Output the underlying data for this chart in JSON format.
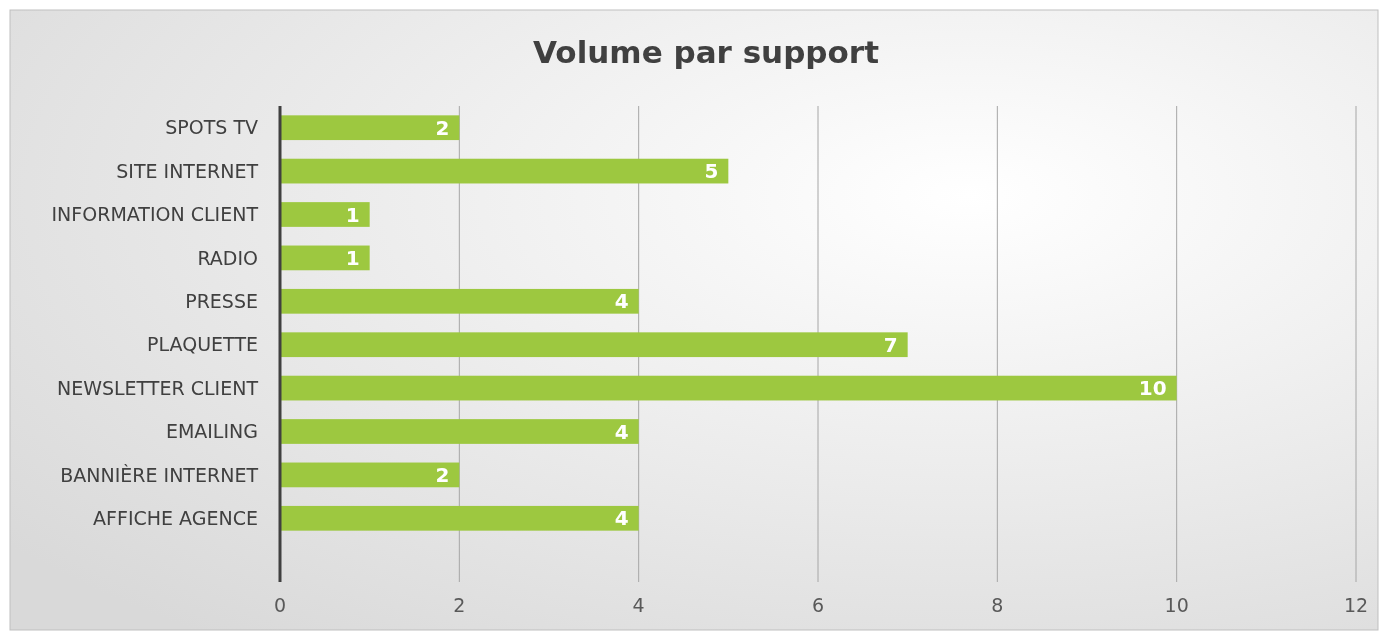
{
  "chart_data": {
    "type": "bar",
    "orientation": "horizontal",
    "title": "Volume par support",
    "categories": [
      "SPOTS TV",
      "SITE INTERNET",
      "INFORMATION CLIENT",
      "RADIO",
      "PRESSE",
      "PLAQUETTE",
      "NEWSLETTER CLIENT",
      "EMAILING",
      "BANNIÈRE INTERNET",
      "AFFICHE AGENCE"
    ],
    "values": [
      2,
      5,
      1,
      1,
      4,
      7,
      10,
      4,
      2,
      4
    ],
    "color": "#9dc840",
    "xlim": [
      0,
      12
    ],
    "xticks": [
      0,
      2,
      4,
      6,
      8,
      10,
      12
    ],
    "grid": "x",
    "data_labels": true
  }
}
